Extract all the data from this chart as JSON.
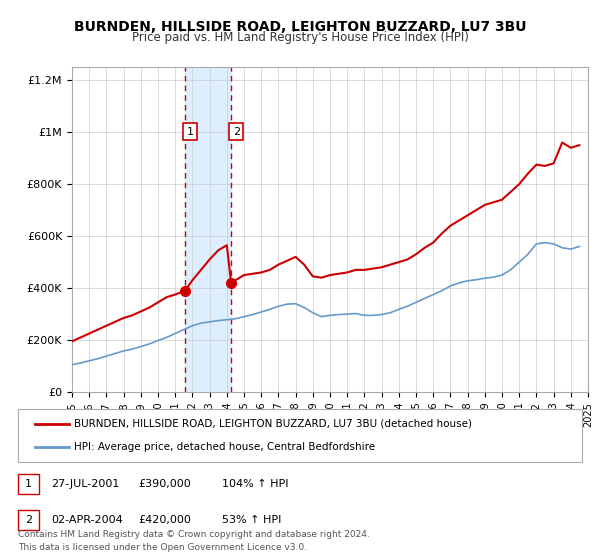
{
  "title": "BURNDEN, HILLSIDE ROAD, LEIGHTON BUZZARD, LU7 3BU",
  "subtitle": "Price paid vs. HM Land Registry's House Price Index (HPI)",
  "red_label": "BURNDEN, HILLSIDE ROAD, LEIGHTON BUZZARD, LU7 3BU (detached house)",
  "blue_label": "HPI: Average price, detached house, Central Bedfordshire",
  "transaction1_label": "1",
  "transaction1_date": "27-JUL-2001",
  "transaction1_price": "£390,000",
  "transaction1_hpi": "104% ↑ HPI",
  "transaction1_year": 2001.57,
  "transaction1_price_val": 390000,
  "transaction2_label": "2",
  "transaction2_date": "02-APR-2004",
  "transaction2_price": "£420,000",
  "transaction2_hpi": "53% ↑ HPI",
  "transaction2_year": 2004.25,
  "transaction2_price_val": 420000,
  "red_color": "#cc0000",
  "blue_color": "#6699cc",
  "shade_color": "#ddeeff",
  "grid_color": "#cccccc",
  "background_color": "#ffffff",
  "ylim": [
    0,
    1250000
  ],
  "xlim_start": 1995,
  "xlim_end": 2025,
  "footer": "Contains HM Land Registry data © Crown copyright and database right 2024.\nThis data is licensed under the Open Government Licence v3.0.",
  "red_x": [
    1995.0,
    1995.5,
    1996.0,
    1996.5,
    1997.0,
    1997.5,
    1998.0,
    1998.5,
    1999.0,
    1999.5,
    2000.0,
    2000.5,
    2001.0,
    2001.57,
    2002.0,
    2002.5,
    2003.0,
    2003.5,
    2004.0,
    2004.25,
    2004.75,
    2005.0,
    2005.5,
    2006.0,
    2006.5,
    2007.0,
    2007.5,
    2008.0,
    2008.5,
    2009.0,
    2009.5,
    2010.0,
    2010.5,
    2011.0,
    2011.5,
    2012.0,
    2012.5,
    2013.0,
    2013.5,
    2014.0,
    2014.5,
    2015.0,
    2015.5,
    2016.0,
    2016.5,
    2017.0,
    2017.5,
    2018.0,
    2018.5,
    2019.0,
    2019.5,
    2020.0,
    2020.5,
    2021.0,
    2021.5,
    2022.0,
    2022.5,
    2023.0,
    2023.5,
    2024.0,
    2024.5
  ],
  "red_y": [
    195000,
    210000,
    225000,
    240000,
    255000,
    270000,
    285000,
    295000,
    310000,
    325000,
    345000,
    365000,
    375000,
    390000,
    430000,
    470000,
    510000,
    545000,
    565000,
    420000,
    440000,
    450000,
    455000,
    460000,
    470000,
    490000,
    505000,
    520000,
    490000,
    445000,
    440000,
    450000,
    455000,
    460000,
    470000,
    470000,
    475000,
    480000,
    490000,
    500000,
    510000,
    530000,
    555000,
    575000,
    610000,
    640000,
    660000,
    680000,
    700000,
    720000,
    730000,
    740000,
    770000,
    800000,
    840000,
    875000,
    870000,
    880000,
    960000,
    940000,
    950000
  ],
  "blue_x": [
    1995.0,
    1995.5,
    1996.0,
    1996.5,
    1997.0,
    1997.5,
    1998.0,
    1998.5,
    1999.0,
    1999.5,
    2000.0,
    2000.5,
    2001.0,
    2001.5,
    2002.0,
    2002.5,
    2003.0,
    2003.5,
    2004.0,
    2004.5,
    2005.0,
    2005.5,
    2006.0,
    2006.5,
    2007.0,
    2007.5,
    2008.0,
    2008.5,
    2009.0,
    2009.5,
    2010.0,
    2010.5,
    2011.0,
    2011.5,
    2012.0,
    2012.5,
    2013.0,
    2013.5,
    2014.0,
    2014.5,
    2015.0,
    2015.5,
    2016.0,
    2016.5,
    2017.0,
    2017.5,
    2018.0,
    2018.5,
    2019.0,
    2019.5,
    2020.0,
    2020.5,
    2021.0,
    2021.5,
    2022.0,
    2022.5,
    2023.0,
    2023.5,
    2024.0,
    2024.5
  ],
  "blue_y": [
    105000,
    112000,
    120000,
    128000,
    138000,
    148000,
    158000,
    165000,
    175000,
    185000,
    198000,
    210000,
    225000,
    240000,
    255000,
    265000,
    270000,
    275000,
    278000,
    282000,
    290000,
    298000,
    308000,
    318000,
    330000,
    338000,
    340000,
    325000,
    305000,
    290000,
    295000,
    298000,
    300000,
    302000,
    295000,
    295000,
    298000,
    305000,
    318000,
    330000,
    345000,
    360000,
    375000,
    390000,
    408000,
    420000,
    428000,
    432000,
    438000,
    442000,
    450000,
    470000,
    500000,
    530000,
    570000,
    575000,
    570000,
    555000,
    550000,
    560000
  ]
}
